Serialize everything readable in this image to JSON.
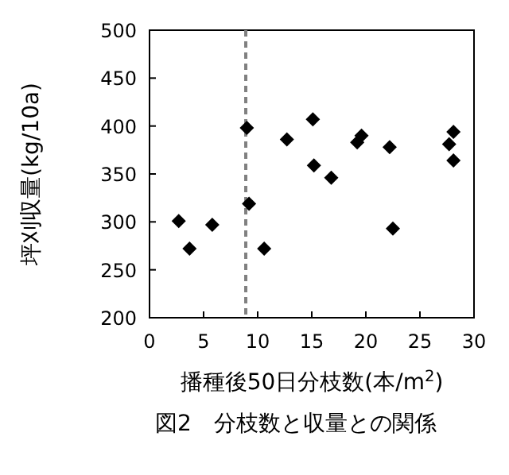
{
  "chart_data": {
    "type": "scatter",
    "title": "図2　分枝数と収量との関係",
    "xlabel": "播種後50日分枝数(本/m$^{2}$)",
    "ylabel": "坪刈収量(kg/10a)",
    "x": [
      2.7,
      3.7,
      5.8,
      9.0,
      9.2,
      10.6,
      12.7,
      15.1,
      15.2,
      16.8,
      19.2,
      19.6,
      22.2,
      22.5,
      27.7,
      28.1,
      28.1
    ],
    "values": [
      301,
      272,
      297,
      398,
      319,
      272,
      386,
      407,
      359,
      346,
      383,
      390,
      378,
      293,
      381,
      394,
      364
    ],
    "color": "#000000",
    "marker": "diamond",
    "xlim": [
      0,
      30
    ],
    "xticks": [
      0,
      5,
      10,
      15,
      20,
      25,
      30
    ],
    "ylim": [
      200,
      500
    ],
    "yticks": [
      200,
      250,
      300,
      350,
      400,
      450,
      500
    ],
    "ref_lines": [
      {
        "axis": "x",
        "value": 8.9,
        "color": "#808080",
        "line_style": "dashed"
      }
    ],
    "grid": false
  }
}
